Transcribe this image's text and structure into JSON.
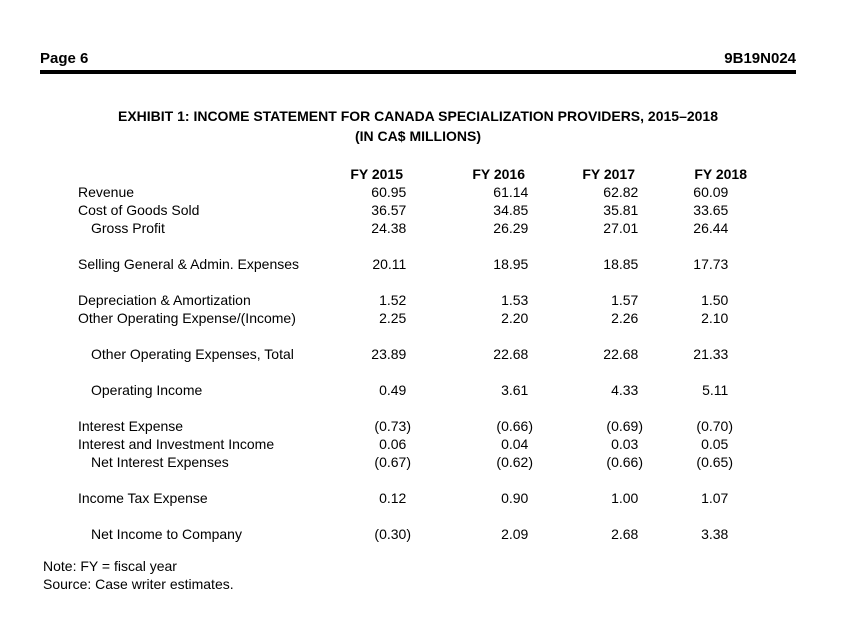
{
  "page": {
    "header": {
      "left": "Page 6",
      "right": "9B19N024"
    },
    "title_line1": "EXHIBIT 1: INCOME STATEMENT FOR CANADA SPECIALIZATION PROVIDERS, 2015–2018",
    "title_line2": "(IN CA$ MILLIONS)",
    "notes": [
      "Note: FY = fiscal year",
      "Source: Case writer estimates."
    ]
  },
  "table": {
    "columns": [
      "FY 2015",
      "FY 2016",
      "FY 2017",
      "FY 2018"
    ],
    "rows": [
      {
        "label": "Revenue",
        "indent": false,
        "values": [
          "60.95",
          "61.14",
          "62.82",
          "60.09"
        ],
        "spacer_after": false
      },
      {
        "label": "Cost of Goods Sold",
        "indent": false,
        "values": [
          "36.57",
          "34.85",
          "35.81",
          "33.65"
        ],
        "spacer_after": false
      },
      {
        "label": "Gross Profit",
        "indent": true,
        "values": [
          "24.38",
          "26.29",
          "27.01",
          "26.44"
        ],
        "spacer_after": true
      },
      {
        "label": "Selling General & Admin. Expenses",
        "indent": false,
        "values": [
          "20.11",
          "18.95",
          "18.85",
          "17.73"
        ],
        "spacer_after": true
      },
      {
        "label": "Depreciation & Amortization",
        "indent": false,
        "values": [
          "1.52",
          "1.53",
          "1.57",
          "1.50"
        ],
        "spacer_after": false
      },
      {
        "label": "Other Operating Expense/(Income)",
        "indent": false,
        "values": [
          "2.25",
          "2.20",
          "2.26",
          "2.10"
        ],
        "spacer_after": true
      },
      {
        "label": "Other Operating Expenses, Total",
        "indent": true,
        "values": [
          "23.89",
          "22.68",
          "22.68",
          "21.33"
        ],
        "spacer_after": true
      },
      {
        "label": "Operating Income",
        "indent": true,
        "values": [
          "0.49",
          "3.61",
          "4.33",
          "5.11"
        ],
        "spacer_after": true
      },
      {
        "label": "Interest Expense",
        "indent": false,
        "values": [
          "(0.73)",
          "(0.66)",
          "(0.69)",
          "(0.70)"
        ],
        "spacer_after": false
      },
      {
        "label": "Interest and Investment Income",
        "indent": false,
        "values": [
          "0.06",
          "0.04",
          "0.03",
          "0.05"
        ],
        "spacer_after": false
      },
      {
        "label": "Net Interest Expenses",
        "indent": true,
        "values": [
          "(0.67)",
          "(0.62)",
          "(0.66)",
          "(0.65)"
        ],
        "spacer_after": true
      },
      {
        "label": "Income Tax Expense",
        "indent": false,
        "values": [
          "0.12",
          "0.90",
          "1.00",
          "1.07"
        ],
        "spacer_after": true
      },
      {
        "label": "Net Income to Company",
        "indent": true,
        "values": [
          "(0.30)",
          "2.09",
          "2.68",
          "3.38"
        ],
        "spacer_after": false
      }
    ]
  }
}
